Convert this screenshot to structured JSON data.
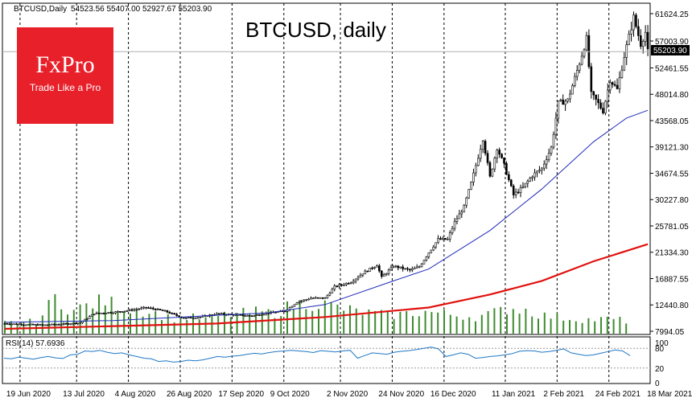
{
  "header": {
    "symbol": "BTCUSD,Daily",
    "ohlc": "54523.56 55407.00 52927.67 55203.90"
  },
  "logo": {
    "brand": "FxPro",
    "tagline": "Trade Like a Pro"
  },
  "colors": {
    "candle": "#000000",
    "ma_short": "#1f2ab8",
    "ma_long": "#e0120f",
    "volume": "#3e8c2f",
    "rsi": "#1f77c4",
    "grid": "#000000",
    "logo_bg": "#e8202a"
  },
  "chart_data": [
    {
      "type": "candlestick",
      "title": "BTCUSD, daily",
      "x_range": [
        "2020-06-18",
        "2021-03-20"
      ],
      "ylim": [
        7994,
        62000
      ],
      "y_ticks": [
        7994.05,
        12440.8,
        16887.55,
        21334.3,
        25781.05,
        30227.8,
        34674.55,
        39121.3,
        43568.05,
        48014.8,
        52461.55,
        57003.9,
        61624.25
      ],
      "y_tick_labels": [
        "7994.05",
        "12440.80",
        "16887.55",
        "21334.30",
        "25781.05",
        "30227.80",
        "34674.55",
        "39121.30",
        "43568.05",
        "48014.80",
        "52461.55",
        "57003.90",
        "61624.25"
      ],
      "x_tick_labels": [
        "19 Jun 2020",
        "13 Jul 2020",
        "4 Aug 2020",
        "26 Aug 2020",
        "17 Sep 2020",
        "9 Oct 2020",
        "2 Nov 2020",
        "24 Nov 2020",
        "16 Dec 2020",
        "11 Jan 2021",
        "2 Feb 2021",
        "24 Feb 2021",
        "18 Mar 2021"
      ],
      "current_price_label": "55203.90",
      "grid": "vertical dashed",
      "close_path": [
        {
          "x": "2020-06-19",
          "y": 9300
        },
        {
          "x": "2020-06-27",
          "y": 9150
        },
        {
          "x": "2020-07-05",
          "y": 9050
        },
        {
          "x": "2020-07-13",
          "y": 9200
        },
        {
          "x": "2020-07-21",
          "y": 9400
        },
        {
          "x": "2020-07-27",
          "y": 11000
        },
        {
          "x": "2020-08-04",
          "y": 11200
        },
        {
          "x": "2020-08-12",
          "y": 11600
        },
        {
          "x": "2020-08-18",
          "y": 12000
        },
        {
          "x": "2020-08-26",
          "y": 11400
        },
        {
          "x": "2020-09-03",
          "y": 10200
        },
        {
          "x": "2020-09-10",
          "y": 10400
        },
        {
          "x": "2020-09-17",
          "y": 10950
        },
        {
          "x": "2020-09-25",
          "y": 10750
        },
        {
          "x": "2020-10-02",
          "y": 10600
        },
        {
          "x": "2020-10-09",
          "y": 11100
        },
        {
          "x": "2020-10-16",
          "y": 11400
        },
        {
          "x": "2020-10-21",
          "y": 12900
        },
        {
          "x": "2020-10-27",
          "y": 13600
        },
        {
          "x": "2020-11-02",
          "y": 13600
        },
        {
          "x": "2020-11-06",
          "y": 15500
        },
        {
          "x": "2020-11-13",
          "y": 16300
        },
        {
          "x": "2020-11-18",
          "y": 17800
        },
        {
          "x": "2020-11-24",
          "y": 19200
        },
        {
          "x": "2020-11-26",
          "y": 17100
        },
        {
          "x": "2020-12-01",
          "y": 19000
        },
        {
          "x": "2020-12-08",
          "y": 18300
        },
        {
          "x": "2020-12-12",
          "y": 18900
        },
        {
          "x": "2020-12-16",
          "y": 21300
        },
        {
          "x": "2020-12-20",
          "y": 23500
        },
        {
          "x": "2020-12-24",
          "y": 23500
        },
        {
          "x": "2020-12-27",
          "y": 26400
        },
        {
          "x": "2020-12-31",
          "y": 29000
        },
        {
          "x": "2021-01-03",
          "y": 33000
        },
        {
          "x": "2021-01-08",
          "y": 40500
        },
        {
          "x": "2021-01-11",
          "y": 34000
        },
        {
          "x": "2021-01-14",
          "y": 39000
        },
        {
          "x": "2021-01-17",
          "y": 36000
        },
        {
          "x": "2021-01-21",
          "y": 31000
        },
        {
          "x": "2021-01-25",
          "y": 32300
        },
        {
          "x": "2021-01-29",
          "y": 34300
        },
        {
          "x": "2021-02-02",
          "y": 35500
        },
        {
          "x": "2021-02-06",
          "y": 39000
        },
        {
          "x": "2021-02-09",
          "y": 46500
        },
        {
          "x": "2021-02-13",
          "y": 47000
        },
        {
          "x": "2021-02-17",
          "y": 52000
        },
        {
          "x": "2021-02-21",
          "y": 57400
        },
        {
          "x": "2021-02-23",
          "y": 48000
        },
        {
          "x": "2021-02-25",
          "y": 47000
        },
        {
          "x": "2021-02-28",
          "y": 45200
        },
        {
          "x": "2021-03-03",
          "y": 50500
        },
        {
          "x": "2021-03-06",
          "y": 48800
        },
        {
          "x": "2021-03-09",
          "y": 54500
        },
        {
          "x": "2021-03-13",
          "y": 61000
        },
        {
          "x": "2021-03-16",
          "y": 56500
        },
        {
          "x": "2021-03-18",
          "y": 58500
        },
        {
          "x": "2021-03-19",
          "y": 55200
        }
      ],
      "ma_short_path": [
        {
          "x": "2020-06-19",
          "y": 9500
        },
        {
          "x": "2020-08-04",
          "y": 9800
        },
        {
          "x": "2020-09-17",
          "y": 10700
        },
        {
          "x": "2020-10-09",
          "y": 11100
        },
        {
          "x": "2020-11-02",
          "y": 12500
        },
        {
          "x": "2020-12-01",
          "y": 16500
        },
        {
          "x": "2020-12-16",
          "y": 18500
        },
        {
          "x": "2021-01-11",
          "y": 25000
        },
        {
          "x": "2021-02-02",
          "y": 32000
        },
        {
          "x": "2021-02-24",
          "y": 40000
        },
        {
          "x": "2021-03-10",
          "y": 44000
        },
        {
          "x": "2021-03-19",
          "y": 45300
        }
      ],
      "ma_long_path": [
        {
          "x": "2020-06-19",
          "y": 8400
        },
        {
          "x": "2020-09-17",
          "y": 9300
        },
        {
          "x": "2020-11-02",
          "y": 10400
        },
        {
          "x": "2020-12-16",
          "y": 12000
        },
        {
          "x": "2021-01-11",
          "y": 14200
        },
        {
          "x": "2021-02-02",
          "y": 16500
        },
        {
          "x": "2021-02-24",
          "y": 19800
        },
        {
          "x": "2021-03-19",
          "y": 22700
        }
      ],
      "volume_levels": [
        0.3,
        0.3,
        0.35,
        1.0,
        0.6,
        0.8,
        0.9,
        0.7,
        0.65,
        0.55,
        0.4,
        0.45,
        0.4,
        0.5,
        0.55,
        0.6,
        0.55,
        0.75,
        0.85,
        0.8,
        0.7,
        0.6,
        0.55,
        0.5,
        0.55,
        0.6,
        0.55,
        0.5,
        0.45,
        0.55,
        0.7,
        0.65,
        0.5,
        0.45,
        0.4,
        0.38,
        0.4,
        0.35
      ]
    },
    {
      "type": "line",
      "title": "RSI(14) 57.6936",
      "ylim": [
        0,
        100
      ],
      "y_ticks": [
        100,
        80,
        20,
        0
      ],
      "y_tick_labels": [
        "100",
        "80",
        "20",
        "0"
      ],
      "values": [
        50,
        48,
        53,
        50,
        47,
        52,
        55,
        51,
        49,
        60,
        62,
        72,
        70,
        74,
        68,
        64,
        66,
        60,
        55,
        50,
        48,
        40,
        42,
        38,
        40,
        44,
        42,
        45,
        50,
        55,
        53,
        56,
        58,
        62,
        65,
        63,
        67,
        70,
        72,
        74,
        72,
        70,
        67,
        73,
        71,
        69,
        72,
        74,
        50,
        58,
        66,
        64,
        62,
        68,
        71,
        73,
        76,
        80,
        84,
        78,
        55,
        60,
        66,
        62,
        50,
        52,
        55,
        57,
        60,
        64,
        71,
        73,
        72,
        68,
        70,
        74,
        78,
        66,
        62,
        58,
        60,
        65,
        70,
        75,
        72,
        57.7
      ]
    }
  ]
}
